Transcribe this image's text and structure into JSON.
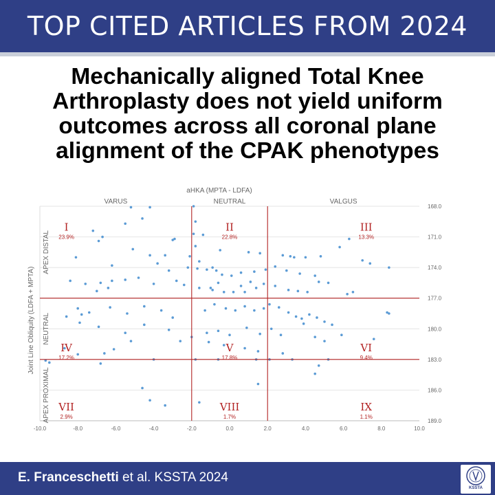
{
  "banner": {
    "title": "TOP CITED ARTICLES FROM 2024"
  },
  "headline": {
    "lines": [
      "Mechanically aligned Total Knee",
      "Arthroplasty does not yield uniform",
      "outcomes across all coronal plane",
      "alignment of the CPAK phenotypes"
    ]
  },
  "footer": {
    "author": "E. Franceschetti",
    "rest": " et al. KSSTA 2024",
    "logo_text": "KSSTA"
  },
  "colors": {
    "banner": "#2f3f86",
    "divider": "#b22222",
    "points": "#5b9bd5",
    "region_label": "#b22222"
  },
  "chart_data": {
    "type": "scatter",
    "title": "aHKA (MPTA - LDFA)",
    "xlabel": "",
    "ylabel": "Joint Line Obliquity (LDFA + MPTA)",
    "xlim": [
      -10,
      10
    ],
    "ylim": [
      168,
      189
    ],
    "y_inverted": true,
    "x_ticks": [
      "-10.0",
      "-8.0",
      "-6.0",
      "-4.0",
      "-2.0",
      "0.0",
      "2.0",
      "4.0",
      "6.0",
      "8.0",
      "10.0"
    ],
    "y_ticks": [
      "168.0",
      "171.0",
      "174.0",
      "177.0",
      "180.0",
      "183.0",
      "186.0",
      "189.0"
    ],
    "grid": "horizontal",
    "column_labels": [
      {
        "text": "VARUS",
        "x": -6
      },
      {
        "text": "NEUTRAL",
        "x": 0
      },
      {
        "text": "VALGUS",
        "x": 6
      }
    ],
    "row_labels": [
      {
        "text": "APEX DISTAL",
        "y": 172.5
      },
      {
        "text": "NEUTRAL",
        "y": 180
      },
      {
        "text": "APEX PROXIMAL",
        "y": 186.5
      }
    ],
    "dividers": {
      "x": [
        -2,
        2
      ],
      "y": [
        177,
        183
      ]
    },
    "regions": [
      {
        "roman": "I",
        "pct": "23.9%",
        "x": -8.6,
        "y": 170.4
      },
      {
        "roman": "II",
        "pct": "22.8%",
        "x": 0,
        "y": 170.4
      },
      {
        "roman": "III",
        "pct": "13.3%",
        "x": 7.2,
        "y": 170.4
      },
      {
        "roman": "IV",
        "pct": "17.2%",
        "x": -8.6,
        "y": 182.2
      },
      {
        "roman": "V",
        "pct": "17.8%",
        "x": 0,
        "y": 182.2
      },
      {
        "roman": "VI",
        "pct": "9.4%",
        "x": 7.2,
        "y": 182.2
      },
      {
        "roman": "VII",
        "pct": "2.9%",
        "x": -8.6,
        "y": 188.0
      },
      {
        "roman": "VIII",
        "pct": "1.7%",
        "x": 0,
        "y": 188.0
      },
      {
        "roman": "IX",
        "pct": "1.1%",
        "x": 7.2,
        "y": 188.0
      }
    ],
    "points": [
      [
        -5.2,
        168.1
      ],
      [
        -4.2,
        168.1
      ],
      [
        -1.9,
        168.0
      ],
      [
        -4.6,
        169.2
      ],
      [
        -1.8,
        169.5
      ],
      [
        -5.5,
        169.7
      ],
      [
        -7.2,
        170.4
      ],
      [
        -1.9,
        170.7
      ],
      [
        -1.4,
        170.8
      ],
      [
        -6.7,
        171.0
      ],
      [
        -6.9,
        171.4
      ],
      [
        -3.0,
        171.3
      ],
      [
        -2.9,
        171.2
      ],
      [
        -1.8,
        171.9
      ],
      [
        -5.1,
        172.2
      ],
      [
        -4.2,
        172.8
      ],
      [
        -3.4,
        172.8
      ],
      [
        -8.1,
        173.0
      ],
      [
        -1.6,
        173.4
      ],
      [
        -2.1,
        172.9
      ],
      [
        -0.5,
        172.3
      ],
      [
        1.0,
        172.5
      ],
      [
        1.6,
        172.6
      ],
      [
        2.8,
        172.8
      ],
      [
        3.2,
        172.9
      ],
      [
        3.4,
        173.0
      ],
      [
        4.0,
        173.0
      ],
      [
        4.8,
        172.9
      ],
      [
        5.8,
        172.0
      ],
      [
        6.3,
        171.2
      ],
      [
        7.0,
        173.3
      ],
      [
        7.4,
        173.6
      ],
      [
        8.4,
        174.0
      ],
      [
        -6.2,
        173.8
      ],
      [
        -3.8,
        173.6
      ],
      [
        -3.2,
        174.3
      ],
      [
        -2.2,
        174.0
      ],
      [
        -1.7,
        174.1
      ],
      [
        -1.2,
        174.2
      ],
      [
        -0.9,
        174.0
      ],
      [
        -0.7,
        174.3
      ],
      [
        -0.4,
        174.7
      ],
      [
        0.1,
        174.8
      ],
      [
        0.6,
        174.5
      ],
      [
        1.3,
        174.4
      ],
      [
        1.9,
        174.2
      ],
      [
        2.4,
        173.9
      ],
      [
        3.0,
        174.3
      ],
      [
        3.7,
        174.6
      ],
      [
        4.5,
        174.8
      ],
      [
        4.7,
        175.4
      ],
      [
        5.2,
        175.5
      ],
      [
        -8.4,
        175.3
      ],
      [
        -7.6,
        175.6
      ],
      [
        -6.8,
        175.5
      ],
      [
        -6.2,
        175.3
      ],
      [
        -5.5,
        175.2
      ],
      [
        -4.8,
        175.0
      ],
      [
        -4.0,
        175.6
      ],
      [
        -2.8,
        175.3
      ],
      [
        -2.4,
        175.7
      ],
      [
        -1.6,
        176.0
      ],
      [
        -0.9,
        176.2
      ],
      [
        -0.3,
        176.4
      ],
      [
        0.2,
        176.4
      ],
      [
        0.8,
        176.4
      ],
      [
        1.4,
        176.0
      ],
      [
        1.8,
        175.6
      ],
      [
        2.4,
        175.8
      ],
      [
        3.1,
        176.2
      ],
      [
        3.6,
        176.3
      ],
      [
        4.1,
        176.4
      ],
      [
        6.2,
        176.6
      ],
      [
        6.5,
        176.4
      ],
      [
        -7.0,
        176.3
      ],
      [
        -6.4,
        176.0
      ],
      [
        -1.0,
        176.0
      ],
      [
        -0.6,
        175.5
      ],
      [
        0.6,
        175.8
      ],
      [
        1.1,
        175.4
      ],
      [
        -8.0,
        178.0
      ],
      [
        -7.8,
        178.6
      ],
      [
        -7.4,
        178.4
      ],
      [
        -6.3,
        177.9
      ],
      [
        -5.4,
        178.5
      ],
      [
        -4.5,
        177.8
      ],
      [
        -3.6,
        178.2
      ],
      [
        -3.0,
        178.9
      ],
      [
        -1.3,
        178.2
      ],
      [
        -0.8,
        177.6
      ],
      [
        -0.2,
        178.0
      ],
      [
        0.3,
        178.2
      ],
      [
        0.8,
        177.8
      ],
      [
        1.3,
        178.2
      ],
      [
        1.8,
        178.0
      ],
      [
        2.1,
        177.6
      ],
      [
        2.6,
        177.9
      ],
      [
        3.1,
        178.4
      ],
      [
        3.5,
        178.8
      ],
      [
        3.8,
        179.0
      ],
      [
        4.2,
        178.6
      ],
      [
        4.6,
        178.9
      ],
      [
        5.0,
        179.3
      ],
      [
        5.4,
        179.6
      ],
      [
        -8.6,
        178.8
      ],
      [
        -7.9,
        179.4
      ],
      [
        -6.9,
        179.8
      ],
      [
        -5.5,
        180.4
      ],
      [
        -4.5,
        179.6
      ],
      [
        -3.2,
        180.1
      ],
      [
        -2.0,
        180.8
      ],
      [
        -1.2,
        180.4
      ],
      [
        -0.6,
        180.2
      ],
      [
        0.0,
        180.6
      ],
      [
        0.9,
        179.9
      ],
      [
        1.6,
        180.5
      ],
      [
        2.2,
        180.0
      ],
      [
        2.7,
        180.6
      ],
      [
        3.9,
        179.5
      ],
      [
        4.5,
        180.8
      ],
      [
        5.0,
        181.2
      ],
      [
        5.9,
        180.6
      ],
      [
        8.3,
        178.4
      ],
      [
        8.4,
        178.5
      ],
      [
        7.6,
        181.0
      ],
      [
        -5.2,
        181.2
      ],
      [
        -2.6,
        181.2
      ],
      [
        -1.1,
        181.3
      ],
      [
        -0.3,
        181.6
      ],
      [
        0.8,
        181.9
      ],
      [
        1.5,
        182.2
      ],
      [
        2.8,
        182.4
      ],
      [
        -8.7,
        181.9
      ],
      [
        -8.0,
        182.5
      ],
      [
        -6.6,
        182.4
      ],
      [
        -6.1,
        182.0
      ],
      [
        -4.0,
        183.0
      ],
      [
        -1.8,
        183.0
      ],
      [
        -0.6,
        183.0
      ],
      [
        1.4,
        183.0
      ],
      [
        2.1,
        183.0
      ],
      [
        3.3,
        183.0
      ],
      [
        5.2,
        183.0
      ],
      [
        -9.7,
        183.1
      ],
      [
        -9.5,
        183.3
      ],
      [
        -6.8,
        183.4
      ],
      [
        4.7,
        183.6
      ],
      [
        1.5,
        185.4
      ],
      [
        -4.6,
        185.8
      ],
      [
        -4.2,
        187.0
      ],
      [
        -1.6,
        187.2
      ],
      [
        -3.4,
        187.5
      ],
      [
        4.5,
        184.4
      ]
    ]
  }
}
